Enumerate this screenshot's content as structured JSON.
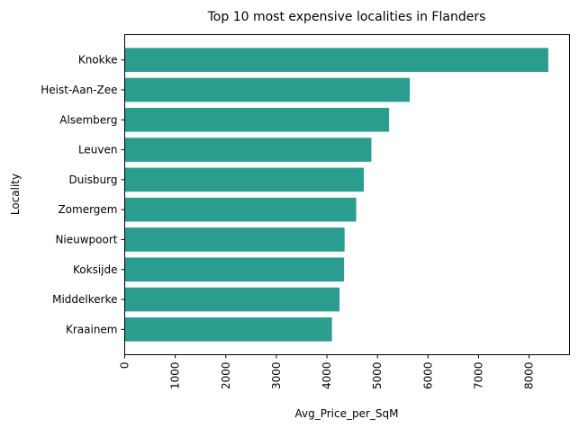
{
  "chart_data": {
    "type": "bar",
    "orientation": "horizontal",
    "title": "Top 10 most expensive localities in Flanders",
    "xlabel": "Avg_Price_per_SqM",
    "ylabel": "Locality",
    "categories": [
      "Knokke",
      "Heist-Aan-Zee",
      "Alsemberg",
      "Leuven",
      "Duisburg",
      "Zomergem",
      "Nieuwpoort",
      "Koksijde",
      "Middelkerke",
      "Kraainem"
    ],
    "values": [
      8380,
      5640,
      5230,
      4880,
      4730,
      4580,
      4350,
      4340,
      4250,
      4100
    ],
    "xlim": [
      0,
      8800
    ],
    "xticks": [
      0,
      1000,
      2000,
      3000,
      4000,
      5000,
      6000,
      7000,
      8000
    ],
    "xtick_rotation": 90,
    "bar_color": "#2a9d8f",
    "grid": false,
    "legend": "none"
  }
}
